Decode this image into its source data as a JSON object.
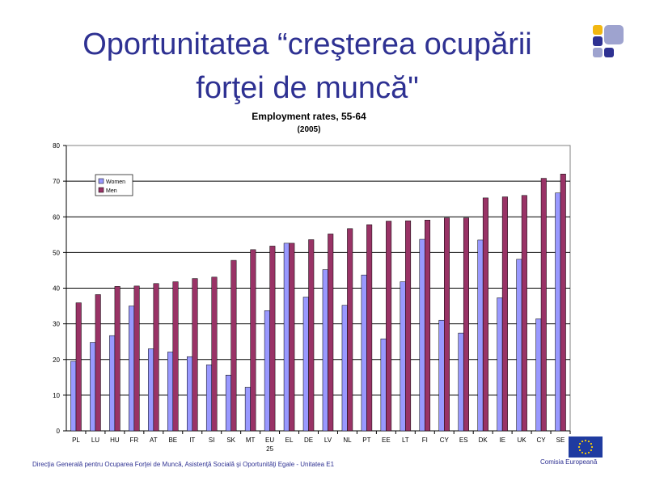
{
  "slide": {
    "title_line1": "Oportunitatea “creşterea ocupării",
    "title_line2": "forţei de muncă\"",
    "footer_left": "Direcţia Generală pentru Ocuparea Forţei de Muncă, Asistenţă Socială şi Oportunităţi Egale  - Unitatea E1",
    "footer_right": "Comisia  Europeană"
  },
  "colors": {
    "title": "#2e3192",
    "women": "#9999ff",
    "men": "#993366"
  },
  "chart_data": {
    "type": "bar",
    "title": "Employment rates, 55-64",
    "subtitle": "(2005)",
    "xlabel": "",
    "ylabel": "",
    "ylim": [
      0,
      80
    ],
    "yticks": [
      0,
      10,
      20,
      30,
      40,
      50,
      60,
      70,
      80
    ],
    "grid": true,
    "legend_position": "top-left",
    "categories": [
      "PL",
      "LU",
      "HU",
      "FR",
      "AT",
      "BE",
      "IT",
      "SI",
      "SK",
      "MT",
      "EU-25",
      "EL",
      "DE",
      "LV",
      "NL",
      "PT",
      "EE",
      "LT",
      "FI",
      "CY",
      "ES",
      "DK",
      "IE",
      "UK",
      "CY",
      "SE"
    ],
    "series": [
      {
        "name": "Women",
        "color": "#9999ff",
        "values": [
          19.5,
          24.8,
          26.7,
          35.0,
          23.0,
          22.1,
          20.8,
          18.5,
          15.6,
          12.2,
          33.7,
          52.6,
          37.5,
          45.2,
          35.2,
          43.7,
          25.8,
          41.8,
          53.7,
          31.0,
          27.4,
          53.5,
          37.3,
          48.1,
          31.4,
          66.7
        ]
      },
      {
        "name": "Men",
        "color": "#993366",
        "values": [
          35.9,
          38.2,
          40.5,
          40.6,
          41.3,
          41.8,
          42.7,
          43.1,
          47.8,
          50.8,
          51.8,
          52.6,
          53.6,
          55.2,
          56.7,
          57.8,
          58.8,
          58.9,
          59.1,
          59.7,
          59.7,
          65.3,
          65.6,
          66.0,
          70.8,
          72.0
        ]
      }
    ]
  }
}
